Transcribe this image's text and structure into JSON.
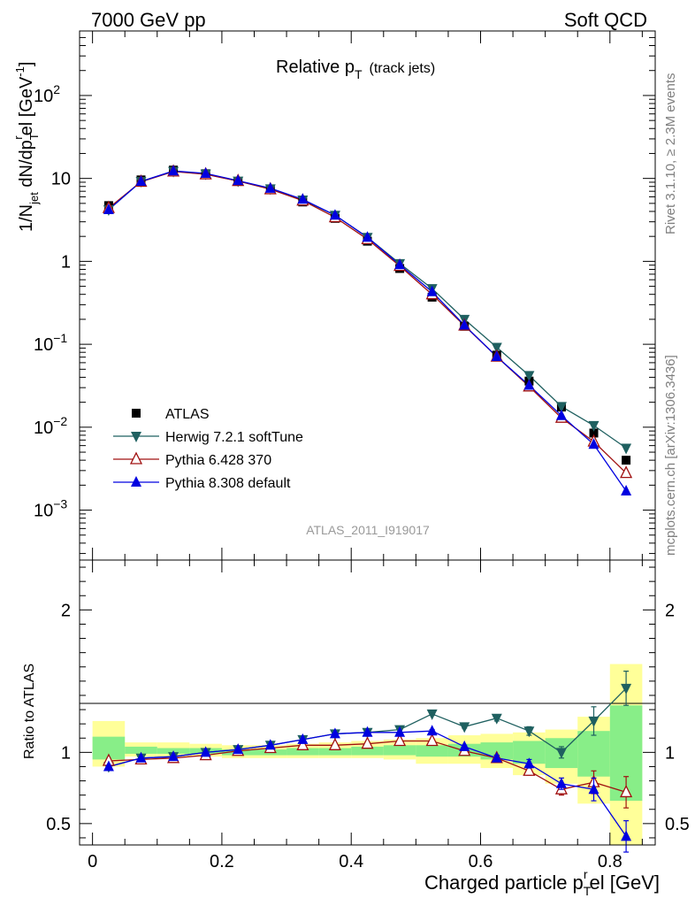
{
  "header": {
    "left": "7000 GeV pp",
    "right": "Soft QCD"
  },
  "side_text": {
    "top": "Rivet 3.1.10, ≥ 2.3M events",
    "bottom": "mcplots.cern.ch [arXiv:1306.3436]"
  },
  "chart_data": [
    {
      "panel": "main",
      "type": "line",
      "title": "Relative p",
      "title_sub": "T",
      "title_suffix": "(track jets)",
      "ylabel": "1/N dN/dp el [GeV",
      "ylabel_parts": {
        "a": "1/N",
        "b": "jet",
        "c": " dN/dp",
        "d": "r",
        "e": "T",
        "f": "el [GeV",
        "g": "-1",
        "h": "]"
      },
      "yscale": "log",
      "ylim": [
        0.00025,
        600
      ],
      "xlim": [
        -0.02,
        0.87
      ],
      "y_ticks": [
        {
          "value": 100,
          "label": "10",
          "sup": "2"
        },
        {
          "value": 10,
          "label": "10",
          "sup": ""
        },
        {
          "value": 1,
          "label": "1",
          "sup": ""
        },
        {
          "value": 0.1,
          "label": "10",
          "sup": "−1"
        },
        {
          "value": 0.01,
          "label": "10",
          "sup": "−2"
        },
        {
          "value": 0.001,
          "label": "10",
          "sup": "−3"
        }
      ],
      "watermark": "ATLAS_2011_I919017",
      "legend_position": "lower-left",
      "x": [
        0.025,
        0.075,
        0.125,
        0.175,
        0.225,
        0.275,
        0.325,
        0.375,
        0.425,
        0.475,
        0.525,
        0.575,
        0.625,
        0.675,
        0.725,
        0.775,
        0.825
      ],
      "series": [
        {
          "name": "ATLAS",
          "marker": "square",
          "color": "#000000",
          "values": [
            4.7,
            9.6,
            12.6,
            11.4,
            9.2,
            7.3,
            5.2,
            3.3,
            1.75,
            0.82,
            0.37,
            0.165,
            0.074,
            0.036,
            0.0175,
            0.0085,
            0.004
          ]
        },
        {
          "name": "Herwig 7.2.1 softTune",
          "marker": "triangle-down",
          "color": "#1f6060",
          "values": [
            4.2,
            9.2,
            12.2,
            11.3,
            9.3,
            7.5,
            5.5,
            3.6,
            1.95,
            0.94,
            0.47,
            0.2,
            0.092,
            0.042,
            0.0178,
            0.0105,
            0.0056
          ]
        },
        {
          "name": "Pythia 6.428 370",
          "marker": "triangle-open",
          "color": "#a01010",
          "values": [
            4.4,
            9.1,
            12.1,
            11.2,
            9.3,
            7.4,
            5.4,
            3.4,
            1.85,
            0.88,
            0.4,
            0.168,
            0.071,
            0.031,
            0.013,
            0.0067,
            0.0028
          ]
        },
        {
          "name": "Pythia 8.308 default",
          "marker": "triangle-up",
          "color": "#0000e0",
          "values": [
            4.2,
            9.2,
            12.3,
            11.5,
            9.4,
            7.6,
            5.6,
            3.6,
            1.95,
            0.91,
            0.43,
            0.17,
            0.071,
            0.032,
            0.0138,
            0.0062,
            0.0017
          ]
        }
      ]
    },
    {
      "panel": "ratio",
      "type": "line",
      "ylabel": "Ratio to ATLAS",
      "xlabel": "Charged particle p",
      "xlabel_parts": {
        "a": "Charged particle p",
        "b": "T",
        "c": "r",
        "d": "el [GeV]"
      },
      "ylim": [
        0.35,
        2.35
      ],
      "xlim": [
        -0.02,
        0.87
      ],
      "y_ticks": [
        0.5,
        1,
        2
      ],
      "x_ticks": [
        0,
        0.2,
        0.4,
        0.6,
        0.8
      ],
      "x_tick_labels": [
        "0",
        "0.2",
        "0.4",
        "0.6",
        "0.8"
      ],
      "x": [
        0.025,
        0.075,
        0.125,
        0.175,
        0.225,
        0.275,
        0.325,
        0.375,
        0.425,
        0.475,
        0.525,
        0.575,
        0.625,
        0.675,
        0.725,
        0.775,
        0.825
      ],
      "bin_edges": [
        0,
        0.05,
        0.1,
        0.15,
        0.2,
        0.25,
        0.3,
        0.35,
        0.4,
        0.45,
        0.5,
        0.55,
        0.6,
        0.65,
        0.7,
        0.75,
        0.8,
        0.85
      ],
      "bands": {
        "yellow": {
          "lo": [
            0.9,
            0.97,
            0.97,
            0.97,
            0.96,
            0.96,
            0.96,
            0.96,
            0.96,
            0.95,
            0.92,
            0.92,
            0.89,
            0.84,
            0.78,
            0.64,
            0.35
          ],
          "hi": [
            1.22,
            1.07,
            1.07,
            1.06,
            1.05,
            1.05,
            1.06,
            1.07,
            1.08,
            1.09,
            1.1,
            1.12,
            1.13,
            1.14,
            1.16,
            1.25,
            1.62
          ]
        },
        "green": {
          "lo": [
            0.95,
            0.99,
            0.99,
            0.99,
            0.98,
            0.98,
            0.98,
            0.98,
            0.98,
            0.98,
            0.97,
            0.97,
            0.95,
            0.92,
            0.89,
            0.83,
            0.66
          ],
          "hi": [
            1.11,
            1.04,
            1.03,
            1.03,
            1.02,
            1.02,
            1.03,
            1.03,
            1.04,
            1.05,
            1.05,
            1.06,
            1.07,
            1.08,
            1.1,
            1.15,
            1.33
          ]
        }
      },
      "series": [
        {
          "name": "Herwig 7.2.1 softTune",
          "marker": "triangle-down",
          "color": "#1f6060",
          "values": [
            0.9,
            0.96,
            0.97,
            1.0,
            1.02,
            1.05,
            1.09,
            1.13,
            1.14,
            1.16,
            1.27,
            1.18,
            1.24,
            1.15,
            1.0,
            1.22,
            1.45
          ],
          "err": [
            0,
            0,
            0,
            0,
            0,
            0,
            0,
            0,
            0,
            0,
            0.01,
            0.01,
            0.02,
            0.03,
            0.04,
            0.1,
            0.12
          ]
        },
        {
          "name": "Pythia 6.428 370",
          "marker": "triangle-open",
          "color": "#a01010",
          "values": [
            0.94,
            0.95,
            0.96,
            0.98,
            1.01,
            1.03,
            1.05,
            1.05,
            1.06,
            1.08,
            1.08,
            1.01,
            0.96,
            0.87,
            0.74,
            0.79,
            0.72
          ],
          "err": [
            0,
            0,
            0,
            0,
            0,
            0,
            0,
            0,
            0,
            0,
            0.01,
            0.01,
            0.02,
            0.03,
            0.04,
            0.08,
            0.11
          ]
        },
        {
          "name": "Pythia 8.308 default",
          "marker": "triangle-up",
          "color": "#0000e0",
          "values": [
            0.9,
            0.96,
            0.97,
            1.0,
            1.02,
            1.05,
            1.09,
            1.13,
            1.14,
            1.14,
            1.15,
            1.04,
            0.96,
            0.92,
            0.78,
            0.74,
            0.41
          ],
          "err": [
            0,
            0,
            0,
            0,
            0,
            0,
            0,
            0,
            0,
            0,
            0.01,
            0.01,
            0.02,
            0.03,
            0.04,
            0.08,
            0.11
          ]
        }
      ]
    }
  ]
}
